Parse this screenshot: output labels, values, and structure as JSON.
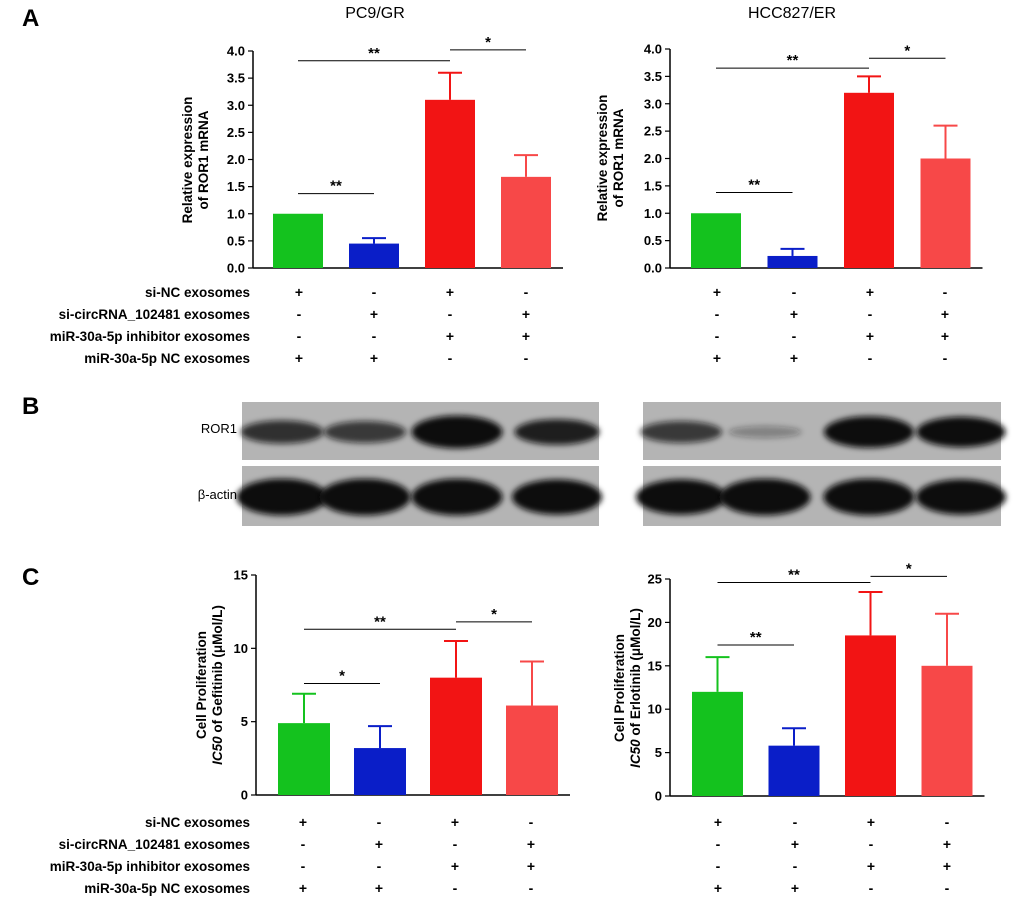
{
  "panel_labels": {
    "a": "A",
    "b": "B",
    "c": "C"
  },
  "colors": {
    "bar1": "#14c21e",
    "bar2": "#0a1ec8",
    "bar3": "#f21414",
    "bar4": "#f74848",
    "band": "#111111",
    "blot_bg": "#b4b4b4"
  },
  "conditions": {
    "rows": [
      "si-NC exosomes",
      "si-circRNA_102481 exosomes",
      "miR-30a-5p inhibitor exosomes",
      "miR-30a-5p NC exosomes"
    ],
    "signs": [
      [
        "+",
        "-",
        "+",
        "-"
      ],
      [
        "-",
        "+",
        "-",
        "+"
      ],
      [
        "-",
        "-",
        "+",
        "+"
      ],
      [
        "+",
        "+",
        "-",
        "-"
      ]
    ]
  },
  "western": {
    "proteins": [
      "ROR1",
      "β-actin"
    ],
    "panels": [
      {
        "name": "PC9/GR",
        "ROR1": [
          0.55,
          0.5,
          0.95,
          0.65
        ],
        "actin": [
          0.95,
          0.95,
          0.95,
          0.9
        ]
      },
      {
        "name": "HCC827/ER",
        "ROR1": [
          0.5,
          0.08,
          0.9,
          0.85
        ],
        "actin": [
          0.9,
          0.95,
          0.95,
          0.9
        ]
      }
    ]
  },
  "chart_data": [
    {
      "type": "bar",
      "panel": "A",
      "title": "PC9/GR",
      "ylabel": "Relative expression\nof ROR1 mRNA",
      "ylim": [
        0,
        4.0
      ],
      "yticks": [
        "0.0",
        "0.5",
        "1.0",
        "1.5",
        "2.0",
        "2.5",
        "3.0",
        "3.5",
        "4.0"
      ],
      "ytick_values": [
        0,
        0.5,
        1,
        1.5,
        2,
        2.5,
        3,
        3.5,
        4
      ],
      "values": [
        1.0,
        0.45,
        3.1,
        1.68
      ],
      "errors": [
        0,
        0.1,
        0.5,
        0.4
      ],
      "brackets": [
        {
          "from": 0,
          "to": 1,
          "y": 1.37,
          "label": "**"
        },
        {
          "from": 0,
          "to": 2,
          "y": 3.82,
          "label": "**"
        },
        {
          "from": 2,
          "to": 3,
          "y": 4.02,
          "label": "*"
        }
      ]
    },
    {
      "type": "bar",
      "panel": "A",
      "title": "HCC827/ER",
      "ylabel": "Relative expression\nof ROR1 mRNA",
      "ylim": [
        0,
        4.0
      ],
      "yticks": [
        "0.0",
        "0.5",
        "1.0",
        "1.5",
        "2.0",
        "2.5",
        "3.0",
        "3.5",
        "4.0"
      ],
      "ytick_values": [
        0,
        0.5,
        1,
        1.5,
        2,
        2.5,
        3,
        3.5,
        4
      ],
      "values": [
        1.0,
        0.22,
        3.2,
        2.0
      ],
      "errors": [
        0,
        0.13,
        0.3,
        0.6
      ],
      "brackets": [
        {
          "from": 0,
          "to": 1,
          "y": 1.38,
          "label": "**"
        },
        {
          "from": 0,
          "to": 2,
          "y": 3.65,
          "label": "**"
        },
        {
          "from": 2,
          "to": 3,
          "y": 3.83,
          "label": "*"
        }
      ]
    },
    {
      "type": "bar",
      "panel": "C",
      "title": "",
      "ylabel_line1": "Cell Proliferation",
      "ylabel_line2_italic": "IC50",
      "ylabel_line2_rest": " of Gefitinib (μMol/L)",
      "ylim": [
        0,
        15
      ],
      "yticks": [
        "0",
        "5",
        "10",
        "15"
      ],
      "ytick_values": [
        0,
        5,
        10,
        15
      ],
      "values": [
        4.9,
        3.2,
        8.0,
        6.1
      ],
      "errors": [
        2.0,
        1.5,
        2.5,
        3.0
      ],
      "brackets": [
        {
          "from": 0,
          "to": 1,
          "y": 7.6,
          "label": "*"
        },
        {
          "from": 0,
          "to": 2,
          "y": 11.3,
          "label": "**"
        },
        {
          "from": 2,
          "to": 3,
          "y": 11.8,
          "label": "*"
        }
      ]
    },
    {
      "type": "bar",
      "panel": "C",
      "title": "",
      "ylabel_line1": "Cell Proliferation",
      "ylabel_line2_italic": "IC50",
      "ylabel_line2_rest": " of Erlotinib (μMol/L)",
      "ylim": [
        0,
        25
      ],
      "yticks": [
        "0",
        "5",
        "10",
        "15",
        "20",
        "25"
      ],
      "ytick_values": [
        0,
        5,
        10,
        15,
        20,
        25
      ],
      "values": [
        12.0,
        5.8,
        18.5,
        15.0
      ],
      "errors": [
        4.0,
        2.0,
        5.0,
        6.0
      ],
      "brackets": [
        {
          "from": 0,
          "to": 1,
          "y": 17.4,
          "label": "**"
        },
        {
          "from": 0,
          "to": 2,
          "y": 24.6,
          "label": "**"
        },
        {
          "from": 2,
          "to": 3,
          "y": 25.3,
          "label": "*"
        }
      ]
    }
  ]
}
